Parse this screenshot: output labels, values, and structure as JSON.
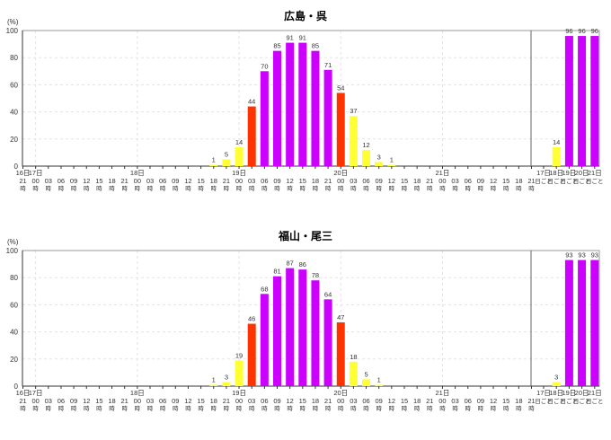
{
  "chart_data": [
    {
      "type": "bar",
      "title": "広島・呉",
      "ylabel": "(%)",
      "ylim": [
        0,
        100
      ],
      "yticks": [
        "0",
        "20",
        "40",
        "60",
        "80",
        "100"
      ],
      "grid": true,
      "day_labels": {
        "16": "16日",
        "17": "17日",
        "18": "18日",
        "19": "19日",
        "20": "20日",
        "21": "21日"
      },
      "hour_suffix": "時",
      "daily_suffix": "日ごと",
      "hourly": {
        "slots": [
          {
            "day": "16",
            "hour": "21"
          },
          {
            "day": "17",
            "hour": "00"
          },
          {
            "day": "",
            "hour": "03"
          },
          {
            "day": "",
            "hour": "06"
          },
          {
            "day": "",
            "hour": "09"
          },
          {
            "day": "",
            "hour": "12"
          },
          {
            "day": "",
            "hour": "15"
          },
          {
            "day": "",
            "hour": "18"
          },
          {
            "day": "",
            "hour": "21"
          },
          {
            "day": "18",
            "hour": "00"
          },
          {
            "day": "",
            "hour": "03"
          },
          {
            "day": "",
            "hour": "06"
          },
          {
            "day": "",
            "hour": "09"
          },
          {
            "day": "",
            "hour": "12"
          },
          {
            "day": "",
            "hour": "15"
          },
          {
            "day": "",
            "hour": "18"
          },
          {
            "day": "",
            "hour": "21"
          },
          {
            "day": "19",
            "hour": "00"
          },
          {
            "day": "",
            "hour": "03"
          },
          {
            "day": "",
            "hour": "06"
          },
          {
            "day": "",
            "hour": "09"
          },
          {
            "day": "",
            "hour": "12"
          },
          {
            "day": "",
            "hour": "15"
          },
          {
            "day": "",
            "hour": "18"
          },
          {
            "day": "",
            "hour": "21"
          },
          {
            "day": "20",
            "hour": "00"
          },
          {
            "day": "",
            "hour": "03"
          },
          {
            "day": "",
            "hour": "06"
          },
          {
            "day": "",
            "hour": "09"
          },
          {
            "day": "",
            "hour": "12"
          },
          {
            "day": "",
            "hour": "15"
          },
          {
            "day": "",
            "hour": "18"
          },
          {
            "day": "",
            "hour": "21"
          },
          {
            "day": "21",
            "hour": "00"
          },
          {
            "day": "",
            "hour": "03"
          },
          {
            "day": "",
            "hour": "06"
          },
          {
            "day": "",
            "hour": "09"
          },
          {
            "day": "",
            "hour": "12"
          },
          {
            "day": "",
            "hour": "15"
          },
          {
            "day": "",
            "hour": "18"
          },
          {
            "day": "",
            "hour": "21"
          }
        ],
        "values": [
          0,
          0,
          0,
          0,
          0,
          0,
          0,
          0,
          0,
          0,
          0,
          0,
          0,
          0,
          0,
          1,
          5,
          14,
          44,
          70,
          85,
          91,
          91,
          85,
          71,
          54,
          37,
          12,
          3,
          1,
          0,
          0,
          0,
          0,
          0,
          0,
          0,
          0,
          0,
          0,
          0
        ]
      },
      "daily": {
        "days": [
          "17",
          "18",
          "19",
          "20",
          "21"
        ],
        "values": [
          0,
          14,
          96,
          96,
          96
        ]
      }
    },
    {
      "type": "bar",
      "title": "福山・尾三",
      "ylabel": "(%)",
      "ylim": [
        0,
        100
      ],
      "yticks": [
        "0",
        "20",
        "40",
        "60",
        "80",
        "100"
      ],
      "grid": true,
      "day_labels": {
        "16": "16日",
        "17": "17日",
        "18": "18日",
        "19": "19日",
        "20": "20日",
        "21": "21日"
      },
      "hour_suffix": "時",
      "daily_suffix": "日ごと",
      "hourly": {
        "slots": [
          {
            "day": "16",
            "hour": "21"
          },
          {
            "day": "17",
            "hour": "00"
          },
          {
            "day": "",
            "hour": "03"
          },
          {
            "day": "",
            "hour": "06"
          },
          {
            "day": "",
            "hour": "09"
          },
          {
            "day": "",
            "hour": "12"
          },
          {
            "day": "",
            "hour": "15"
          },
          {
            "day": "",
            "hour": "18"
          },
          {
            "day": "",
            "hour": "21"
          },
          {
            "day": "18",
            "hour": "00"
          },
          {
            "day": "",
            "hour": "03"
          },
          {
            "day": "",
            "hour": "06"
          },
          {
            "day": "",
            "hour": "09"
          },
          {
            "day": "",
            "hour": "12"
          },
          {
            "day": "",
            "hour": "15"
          },
          {
            "day": "",
            "hour": "18"
          },
          {
            "day": "",
            "hour": "21"
          },
          {
            "day": "19",
            "hour": "00"
          },
          {
            "day": "",
            "hour": "03"
          },
          {
            "day": "",
            "hour": "06"
          },
          {
            "day": "",
            "hour": "09"
          },
          {
            "day": "",
            "hour": "12"
          },
          {
            "day": "",
            "hour": "15"
          },
          {
            "day": "",
            "hour": "18"
          },
          {
            "day": "",
            "hour": "21"
          },
          {
            "day": "20",
            "hour": "00"
          },
          {
            "day": "",
            "hour": "03"
          },
          {
            "day": "",
            "hour": "06"
          },
          {
            "day": "",
            "hour": "09"
          },
          {
            "day": "",
            "hour": "12"
          },
          {
            "day": "",
            "hour": "15"
          },
          {
            "day": "",
            "hour": "18"
          },
          {
            "day": "",
            "hour": "21"
          },
          {
            "day": "21",
            "hour": "00"
          },
          {
            "day": "",
            "hour": "03"
          },
          {
            "day": "",
            "hour": "06"
          },
          {
            "day": "",
            "hour": "09"
          },
          {
            "day": "",
            "hour": "12"
          },
          {
            "day": "",
            "hour": "15"
          },
          {
            "day": "",
            "hour": "18"
          },
          {
            "day": "",
            "hour": "21"
          }
        ],
        "values": [
          0,
          0,
          0,
          0,
          0,
          0,
          0,
          0,
          0,
          0,
          0,
          0,
          0,
          0,
          0,
          1,
          3,
          19,
          46,
          68,
          81,
          87,
          86,
          78,
          64,
          47,
          18,
          5,
          1,
          0,
          0,
          0,
          0,
          0,
          0,
          0,
          0,
          0,
          0,
          0,
          0
        ]
      },
      "daily": {
        "days": [
          "17",
          "18",
          "19",
          "20",
          "21"
        ],
        "values": [
          0,
          3,
          93,
          93,
          93
        ]
      }
    }
  ],
  "colors": {
    "low": "#ffff33",
    "mid": "#ff3300",
    "high": "#cc00ff",
    "axis": "#333333",
    "grid": "#e3e3e3"
  }
}
